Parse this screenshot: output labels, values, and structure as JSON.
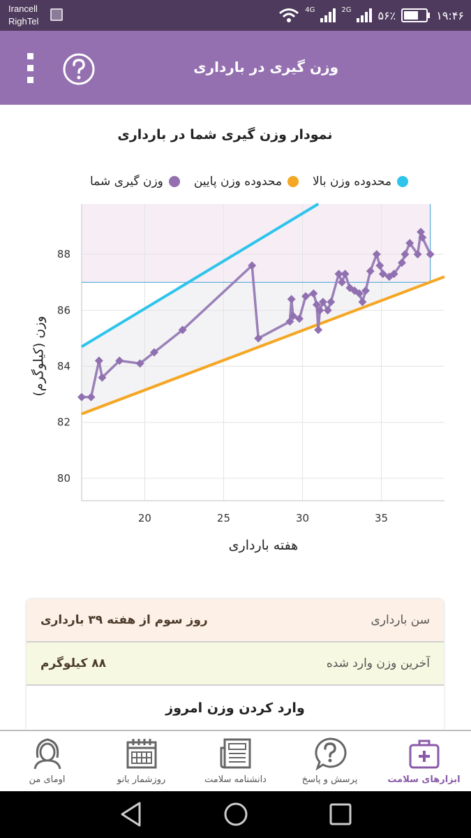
{
  "status_bar": {
    "carrier1": "Irancell",
    "carrier2": "RighTel",
    "net1": "4G",
    "net2": "2G",
    "battery": "۵۶٪",
    "time": "۱۹:۴۶"
  },
  "app_bar": {
    "title": "وزن گیری در بارداری"
  },
  "chart": {
    "title": "نمودار وزن گیری شما در بارداری",
    "legend": [
      {
        "label": "محدوده وزن بالا",
        "color": "#2ec4ec"
      },
      {
        "label": "محدوده وزن پایین",
        "color": "#f5a623"
      },
      {
        "label": "وزن گیری شما",
        "color": "#9570b0"
      }
    ],
    "ylabel": "وزن (کیلوگرم)",
    "xlabel": "هفته بارداری"
  },
  "chart_data": {
    "type": "line",
    "xlim": [
      16,
      39
    ],
    "ylim": [
      79.2,
      89.8
    ],
    "xticks": [
      20,
      25,
      30,
      35
    ],
    "yticks": [
      80,
      82,
      84,
      86,
      88
    ],
    "grid": true,
    "legend_position": "top",
    "series": [
      {
        "name": "محدوده وزن بالا",
        "color": "#2ec4ec",
        "x": [
          16,
          31
        ],
        "y": [
          84.7,
          89.8
        ]
      },
      {
        "name": "محدوده وزن پایین",
        "color": "#f5a623",
        "x": [
          16,
          39
        ],
        "y": [
          82.3,
          87.2
        ]
      },
      {
        "name": "وزن گیری شما",
        "color": "#9570b0",
        "x": [
          16.0,
          16.6,
          17.1,
          17.3,
          18.4,
          19.7,
          20.6,
          22.4,
          26.8,
          27.2,
          29.2,
          29.3,
          29.4,
          29.8,
          30.2,
          30.7,
          30.9,
          31.0,
          31.1,
          31.3,
          31.6,
          31.8,
          32.3,
          32.5,
          32.7,
          33.0,
          33.3,
          33.6,
          33.8,
          34.0,
          34.3,
          34.7,
          34.9,
          35.1,
          35.5,
          35.8,
          36.3,
          36.5,
          36.8,
          37.3,
          37.5,
          37.6,
          38.1
        ],
        "y": [
          82.9,
          82.9,
          84.2,
          83.6,
          84.2,
          84.1,
          84.5,
          85.3,
          87.6,
          85.0,
          85.6,
          86.4,
          85.8,
          85.7,
          86.5,
          86.6,
          86.2,
          85.3,
          86.0,
          86.3,
          86.0,
          86.3,
          87.3,
          87.0,
          87.3,
          86.8,
          86.7,
          86.6,
          86.3,
          86.7,
          87.4,
          88.0,
          87.6,
          87.3,
          87.2,
          87.3,
          87.7,
          88.0,
          88.4,
          88.0,
          88.8,
          88.6,
          88.0
        ]
      }
    ]
  },
  "info": {
    "age_label": "سن بارداری",
    "age_value": "روز سوم از هفته ۳۹ بارداری",
    "weight_label": "آخرین وزن وارد شده",
    "weight_value": "۸۸ کیلوگرم",
    "enter_label": "وارد کردن وزن امروز"
  },
  "nav": [
    {
      "label": "ابزارهای سلامت",
      "icon": "health-kit-icon",
      "active": true
    },
    {
      "label": "پرسش و پاسخ",
      "icon": "question-bubble-icon",
      "active": false
    },
    {
      "label": "دانشنامه سلامت",
      "icon": "newspaper-icon",
      "active": false
    },
    {
      "label": "روزشمار بانو",
      "icon": "calendar-icon",
      "active": false
    },
    {
      "label": "اومای من",
      "icon": "woman-profile-icon",
      "active": false
    }
  ]
}
